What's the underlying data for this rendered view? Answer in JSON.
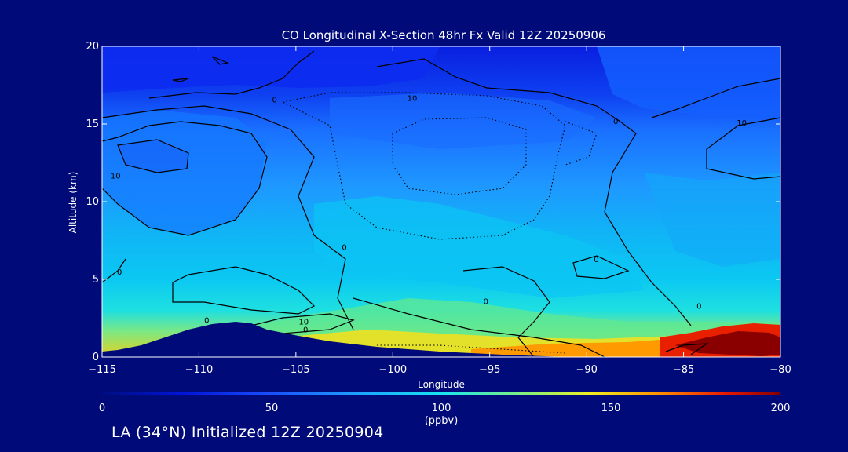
{
  "chart_data": {
    "type": "heatmap",
    "title": "CO Longitudinal X-Section 48hr  Fx Valid 12Z 20250906",
    "xlabel": "Longitude",
    "ylabel": "Altitude (km)",
    "xlim": [
      -115,
      -80
    ],
    "ylim": [
      0,
      20
    ],
    "x_ticks": [
      -115,
      -110,
      -105,
      -100,
      -95,
      -90,
      -85,
      -80
    ],
    "x_tick_labels": [
      "−115",
      "−110",
      "−105",
      "−100",
      "−95",
      "−90",
      "−85",
      "−80"
    ],
    "y_ticks": [
      0,
      5,
      10,
      15,
      20
    ],
    "y_tick_labels": [
      "0",
      "5",
      "10",
      "15",
      "20"
    ],
    "colorbar": {
      "label": "(ppbv)",
      "range": [
        0,
        200
      ],
      "ticks": [
        0,
        50,
        100,
        150,
        200
      ],
      "tick_labels": [
        "0",
        "50",
        "100",
        "150",
        "200"
      ]
    },
    "contour_labels": [
      {
        "text": "0",
        "x": -106.1,
        "y": 16.4
      },
      {
        "text": "10",
        "x": -99.0,
        "y": 16.5
      },
      {
        "text": "0",
        "x": -88.5,
        "y": 15.0
      },
      {
        "text": "10",
        "x": -82.0,
        "y": 14.9
      },
      {
        "text": "10",
        "x": -114.3,
        "y": 11.5
      },
      {
        "text": "0",
        "x": -102.5,
        "y": 6.9
      },
      {
        "text": "0",
        "x": -89.5,
        "y": 6.1
      },
      {
        "text": "0",
        "x": -114.1,
        "y": 5.3
      },
      {
        "text": "0",
        "x": -95.2,
        "y": 3.4
      },
      {
        "text": "0",
        "x": -84.2,
        "y": 3.1
      },
      {
        "text": "0",
        "x": -109.6,
        "y": 2.2
      },
      {
        "text": "10",
        "x": -104.6,
        "y": 2.1
      },
      {
        "text": "0",
        "x": -104.5,
        "y": 1.6
      }
    ]
  },
  "footer": {
    "text": "LA (34°N) Initialized 12Z 20250904"
  },
  "colors": {
    "background": "#000a78",
    "terrain": "#000a78",
    "contour": "#000000"
  }
}
